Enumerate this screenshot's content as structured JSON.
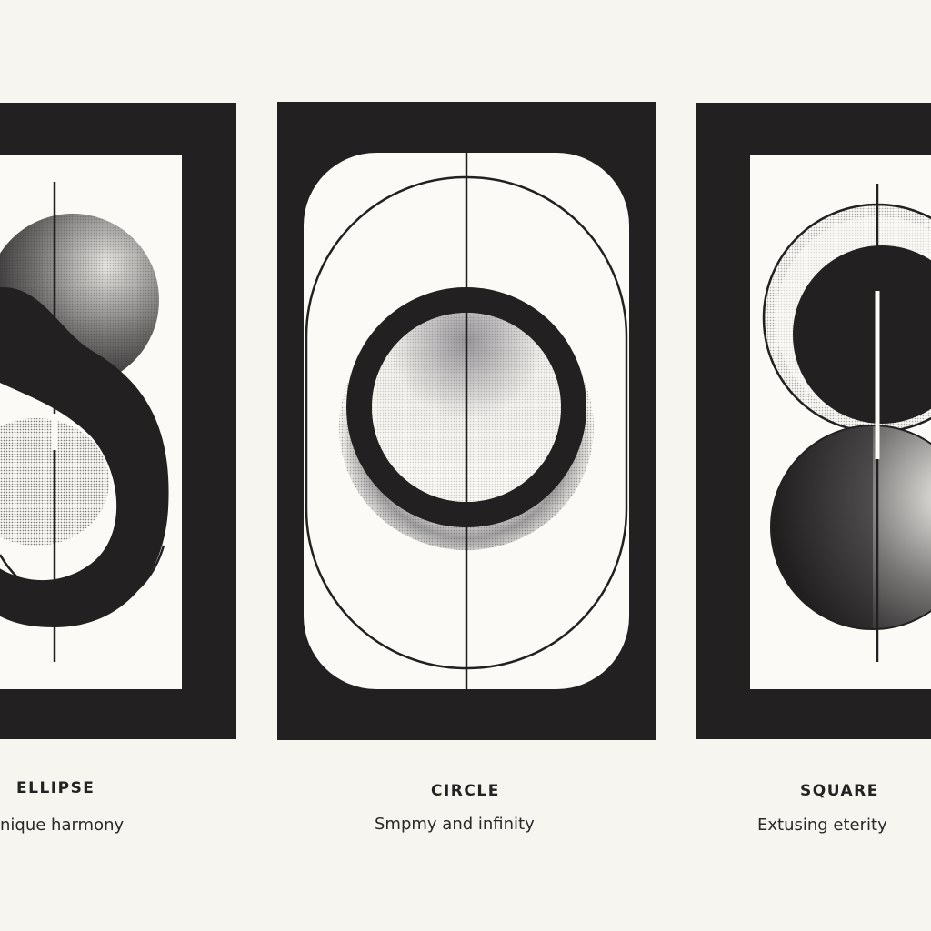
{
  "colors": {
    "background": "#f6f5ef",
    "ink": "#222020",
    "paper": "#fbfaf6"
  },
  "panels": [
    {
      "title": "ELLIPSE",
      "subtitle": "nique harmony",
      "icon": "s-shape-icon"
    },
    {
      "title": "CIRCLE",
      "subtitle": "Smpmy and infinity",
      "icon": "ring-icon"
    },
    {
      "title": "SQUARE",
      "subtitle": "Extusing eterity",
      "icon": "figure-eight-icon"
    }
  ]
}
